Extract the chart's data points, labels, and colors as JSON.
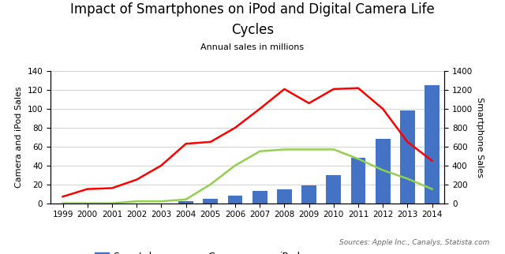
{
  "title_line1": "Impact of Smartphones on iPod and Digital Camera Life",
  "title_line2": "Cycles",
  "subtitle": "Annual sales in millions",
  "ylabel_left": "Camera and iPod Sales",
  "ylabel_right": "Smartphone Sales",
  "source_text": "Sources: Apple Inc., Canalys, Statista.com",
  "years": [
    1999,
    2000,
    2001,
    2002,
    2003,
    2004,
    2005,
    2006,
    2007,
    2008,
    2009,
    2010,
    2011,
    2012,
    2013,
    2014
  ],
  "smartphones": [
    0,
    0,
    0,
    0,
    0,
    2,
    5,
    8,
    13,
    15,
    19,
    30,
    48,
    68,
    98,
    125
  ],
  "cameras": [
    7,
    15,
    16,
    25,
    40,
    63,
    65,
    80,
    100,
    121,
    106,
    121,
    122,
    100,
    65,
    45
  ],
  "ipods": [
    0,
    0,
    0,
    2,
    2,
    4,
    20,
    40,
    55,
    57,
    57,
    57,
    47,
    35,
    26,
    15
  ],
  "ylim_left": [
    0,
    140
  ],
  "ylim_right": [
    0,
    1400
  ],
  "yticks_left": [
    0,
    20,
    40,
    60,
    80,
    100,
    120,
    140
  ],
  "yticks_right": [
    0,
    200,
    400,
    600,
    800,
    1000,
    1200,
    1400
  ],
  "bar_color": "#4472C4",
  "camera_color": "#FF0000",
  "ipod_color": "#92D050",
  "background_color": "#FFFFFF",
  "title_fontsize": 12,
  "subtitle_fontsize": 8,
  "axis_label_fontsize": 8,
  "tick_fontsize": 7.5,
  "legend_fontsize": 9,
  "source_fontsize": 6.5
}
